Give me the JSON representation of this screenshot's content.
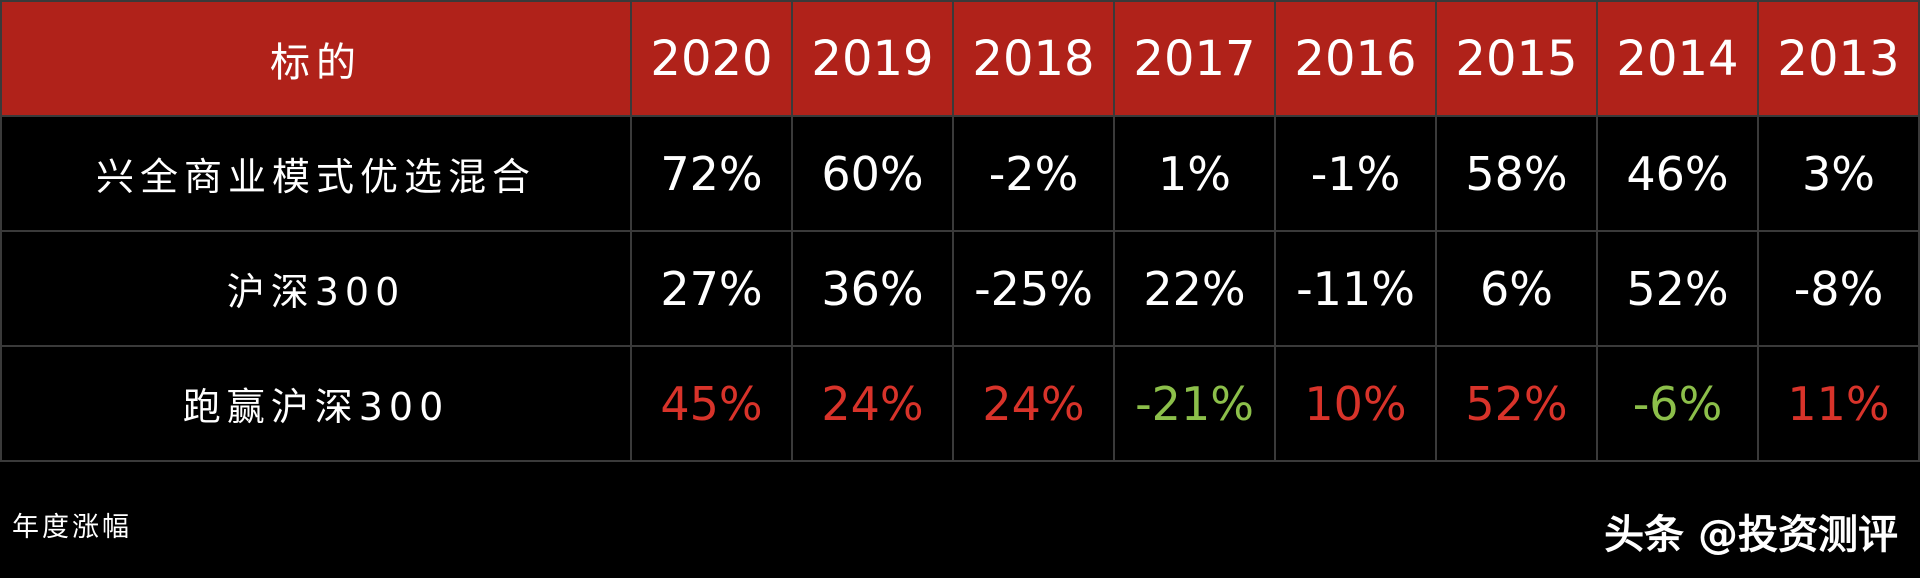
{
  "chart_data": {
    "type": "table",
    "columns": [
      "标的",
      "2020",
      "2019",
      "2018",
      "2017",
      "2016",
      "2015",
      "2014",
      "2013"
    ],
    "rows": [
      {
        "label": "兴全商业模式优选混合",
        "values": [
          "72%",
          "60%",
          "-2%",
          "1%",
          "-1%",
          "58%",
          "46%",
          "3%"
        ],
        "colors": [
          "#ffffff",
          "#ffffff",
          "#ffffff",
          "#ffffff",
          "#ffffff",
          "#ffffff",
          "#ffffff",
          "#ffffff"
        ]
      },
      {
        "label": "沪深300",
        "values": [
          "27%",
          "36%",
          "-25%",
          "22%",
          "-11%",
          "6%",
          "52%",
          "-8%"
        ],
        "colors": [
          "#ffffff",
          "#ffffff",
          "#ffffff",
          "#ffffff",
          "#ffffff",
          "#ffffff",
          "#ffffff",
          "#ffffff"
        ]
      },
      {
        "label": "跑赢沪深300",
        "values": [
          "45%",
          "24%",
          "24%",
          "-21%",
          "10%",
          "52%",
          "-6%",
          "11%"
        ],
        "colors": [
          "#d8332a",
          "#d8332a",
          "#d8332a",
          "#8cbf4a",
          "#d8332a",
          "#d8332a",
          "#8cbf4a",
          "#d8332a"
        ]
      }
    ],
    "header_color": "#b0221a",
    "positive_color": "#d8332a",
    "negative_color": "#8cbf4a"
  },
  "footer": {
    "note": "年度涨幅",
    "watermark": "头条 @投资测评"
  }
}
